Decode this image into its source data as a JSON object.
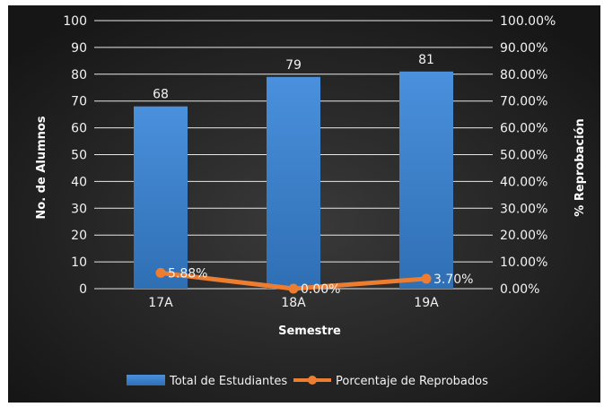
{
  "chart_data": {
    "type": "bar",
    "categories": [
      "17A",
      "18A",
      "19A"
    ],
    "series": [
      {
        "name": "Total de Estudiantes",
        "kind": "bar",
        "axis": "left",
        "values": [
          68,
          79,
          81
        ],
        "labels": [
          "68",
          "79",
          "81"
        ],
        "color": "#3e83c9"
      },
      {
        "name": "Porcentaje de Reprobados",
        "kind": "line",
        "axis": "right",
        "values": [
          5.88,
          0.0,
          3.7
        ],
        "labels": [
          "5.88%",
          "0.00%",
          "3.70%"
        ],
        "color": "#ed7d31"
      }
    ],
    "xlabel": "Semestre",
    "ylabel": "No. de Alumnos",
    "y2label": "% Reprobación",
    "ylim": [
      0,
      100
    ],
    "y2lim": [
      0,
      100
    ],
    "yticks": [
      "0",
      "10",
      "20",
      "30",
      "40",
      "50",
      "60",
      "70",
      "80",
      "90",
      "100"
    ],
    "y2ticks": [
      "0.00%",
      "10.00%",
      "20.00%",
      "30.00%",
      "40.00%",
      "50.00%",
      "60.00%",
      "70.00%",
      "80.00%",
      "90.00%",
      "100.00%"
    ],
    "grid": true,
    "legend": "bottom",
    "background": "#1b1b1b"
  }
}
